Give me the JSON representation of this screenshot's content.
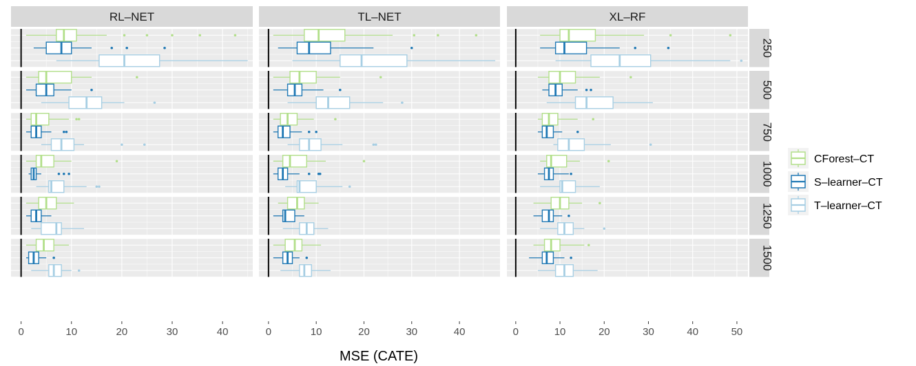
{
  "chart_data": {
    "type": "boxplot",
    "orientation": "horizontal",
    "xlabel": "MSE (CATE)",
    "facet_columns": [
      "RL–NET",
      "TL–NET",
      "XL–RF"
    ],
    "facet_rows": [
      "250",
      "500",
      "750",
      "1000",
      "1250",
      "1500"
    ],
    "xlims": [
      [
        -2,
        46
      ],
      [
        -2,
        48.5
      ],
      [
        -2,
        52.5
      ]
    ],
    "xticks": [
      [
        0,
        10,
        20,
        30,
        40
      ],
      [
        0,
        10,
        20,
        30,
        40
      ],
      [
        0,
        10,
        20,
        30,
        40,
        50
      ]
    ],
    "vline_x": 0,
    "series": [
      {
        "name": "CForest–CT",
        "color": "#b2df8a"
      },
      {
        "name": "S–learner–CT",
        "color": "#1f78b4"
      },
      {
        "name": "T–learner–CT",
        "color": "#a6cee3"
      }
    ],
    "boxes": [
      [
        [
          {
            "wlo": 1,
            "q1": 7,
            "med": 8.5,
            "q3": 11,
            "whi": 17,
            "out": [
              20.5,
              25,
              30,
              35.5,
              42.5
            ]
          },
          {
            "wlo": 2.5,
            "q1": 5,
            "med": 8,
            "q3": 10,
            "whi": 14,
            "out": [
              18,
              21,
              28.5
            ]
          },
          {
            "wlo": 7,
            "q1": 15.5,
            "med": 20.5,
            "q3": 27.5,
            "whi": 45,
            "out": []
          }
        ],
        [
          {
            "wlo": 1,
            "q1": 3.5,
            "med": 5,
            "q3": 10,
            "whi": 14,
            "out": [
              23
            ]
          },
          {
            "wlo": 1,
            "q1": 3,
            "med": 5,
            "q3": 6.5,
            "whi": 10,
            "out": [
              14
            ]
          },
          {
            "wlo": 4,
            "q1": 9.5,
            "med": 13,
            "q3": 16,
            "whi": 20.5,
            "out": [
              26.5
            ]
          }
        ],
        [
          {
            "wlo": 1,
            "q1": 2,
            "med": 3,
            "q3": 5.5,
            "whi": 9.5,
            "out": [
              11,
              11.5
            ]
          },
          {
            "wlo": 1,
            "q1": 2,
            "med": 3,
            "q3": 4,
            "whi": 6,
            "out": [
              8.5,
              9
            ]
          },
          {
            "wlo": 4,
            "q1": 6,
            "med": 8,
            "q3": 10.5,
            "whi": 12.5,
            "out": [
              20,
              24.5
            ]
          }
        ],
        [
          {
            "wlo": 1,
            "q1": 3,
            "med": 4,
            "q3": 6.5,
            "whi": 10,
            "out": [
              19
            ]
          },
          {
            "wlo": 1.5,
            "q1": 2,
            "med": 2.5,
            "q3": 3,
            "whi": 4,
            "out": [
              7.5,
              8.5,
              9.5
            ]
          },
          {
            "wlo": 3,
            "q1": 5.5,
            "med": 6,
            "q3": 8.5,
            "whi": 13,
            "out": [
              15,
              15.5
            ]
          }
        ],
        [
          {
            "wlo": 1,
            "q1": 3.5,
            "med": 5,
            "q3": 7,
            "whi": 10.5,
            "out": []
          },
          {
            "wlo": 1,
            "q1": 2,
            "med": 3,
            "q3": 4,
            "whi": 6,
            "out": []
          },
          {
            "wlo": 2,
            "q1": 4,
            "med": 7,
            "q3": 8,
            "whi": 12.5,
            "out": []
          }
        ],
        [
          {
            "wlo": 1,
            "q1": 3,
            "med": 4.5,
            "q3": 6.5,
            "whi": 9.5,
            "out": []
          },
          {
            "wlo": 1,
            "q1": 1.5,
            "med": 2.5,
            "q3": 3.5,
            "whi": 5,
            "out": [
              6.5
            ]
          },
          {
            "wlo": 2,
            "q1": 5.5,
            "med": 6.5,
            "q3": 8,
            "whi": 10,
            "out": [
              11.5
            ]
          }
        ]
      ],
      [
        [
          {
            "wlo": 1,
            "q1": 7.5,
            "med": 10.5,
            "q3": 16,
            "whi": 26,
            "out": [
              30.5,
              35.5,
              43.5
            ]
          },
          {
            "wlo": 2,
            "q1": 6,
            "med": 8.5,
            "q3": 13,
            "whi": 22,
            "out": [
              30
            ]
          },
          {
            "wlo": 5,
            "q1": 15,
            "med": 19.5,
            "q3": 29,
            "whi": 47.5,
            "out": []
          }
        ],
        [
          {
            "wlo": 1,
            "q1": 4.5,
            "med": 6.5,
            "q3": 10,
            "whi": 15,
            "out": [
              23.5
            ]
          },
          {
            "wlo": 1,
            "q1": 4,
            "med": 5.5,
            "q3": 7,
            "whi": 11.5,
            "out": [
              15
            ]
          },
          {
            "wlo": 4,
            "q1": 10,
            "med": 12.5,
            "q3": 17,
            "whi": 24,
            "out": [
              28
            ]
          }
        ],
        [
          {
            "wlo": 1,
            "q1": 2.5,
            "med": 4,
            "q3": 6,
            "whi": 9.5,
            "out": [
              14
            ]
          },
          {
            "wlo": 1,
            "q1": 2,
            "med": 3,
            "q3": 4.5,
            "whi": 7,
            "out": [
              8.5,
              10
            ]
          },
          {
            "wlo": 4,
            "q1": 6.5,
            "med": 8.5,
            "q3": 11,
            "whi": 15.5,
            "out": [
              22,
              22.5
            ]
          }
        ],
        [
          {
            "wlo": 1,
            "q1": 3,
            "med": 4.5,
            "q3": 8,
            "whi": 12,
            "out": [
              20
            ]
          },
          {
            "wlo": 1,
            "q1": 2,
            "med": 3,
            "q3": 4,
            "whi": 6.5,
            "out": [
              8.5,
              10.5,
              10.8
            ]
          },
          {
            "wlo": 3.5,
            "q1": 6,
            "med": 6.5,
            "q3": 10,
            "whi": 15.5,
            "out": [
              17
            ]
          }
        ],
        [
          {
            "wlo": 2,
            "q1": 4,
            "med": 6,
            "q3": 7.5,
            "whi": 10.5,
            "out": []
          },
          {
            "wlo": 1,
            "q1": 3,
            "med": 3.5,
            "q3": 5.5,
            "whi": 7.5,
            "out": []
          },
          {
            "wlo": 3,
            "q1": 6.5,
            "med": 8,
            "q3": 9.5,
            "whi": 12.5,
            "out": []
          }
        ],
        [
          {
            "wlo": 1,
            "q1": 3.5,
            "med": 5.5,
            "q3": 7,
            "whi": 11,
            "out": []
          },
          {
            "wlo": 1,
            "q1": 3,
            "med": 4,
            "q3": 5,
            "whi": 6.5,
            "out": [
              8
            ]
          },
          {
            "wlo": 2.5,
            "q1": 6.5,
            "med": 7.5,
            "q3": 9,
            "whi": 13,
            "out": []
          }
        ]
      ],
      [
        [
          {
            "wlo": 5.5,
            "q1": 10,
            "med": 12,
            "q3": 18,
            "whi": 29,
            "out": [
              35,
              48.5
            ]
          },
          {
            "wlo": 5.5,
            "q1": 9,
            "med": 11,
            "q3": 16,
            "whi": 23.5,
            "out": [
              27,
              34.5
            ]
          },
          {
            "wlo": 9,
            "q1": 17,
            "med": 23.5,
            "q3": 30.5,
            "whi": 48.5,
            "out": [
              51
            ]
          }
        ],
        [
          {
            "wlo": 5,
            "q1": 7.5,
            "med": 10,
            "q3": 13.5,
            "whi": 19,
            "out": [
              26
            ]
          },
          {
            "wlo": 6,
            "q1": 7.5,
            "med": 9,
            "q3": 10.5,
            "whi": 14,
            "out": [
              16,
              17
            ]
          },
          {
            "wlo": 7,
            "q1": 13.5,
            "med": 16,
            "q3": 22,
            "whi": 31,
            "out": []
          }
        ],
        [
          {
            "wlo": 5,
            "q1": 6,
            "med": 7.5,
            "q3": 9.5,
            "whi": 14,
            "out": [
              17.5
            ]
          },
          {
            "wlo": 5,
            "q1": 6,
            "med": 7,
            "q3": 8.5,
            "whi": 10.5,
            "out": [
              14
            ]
          },
          {
            "wlo": 8.5,
            "q1": 9.5,
            "med": 12,
            "q3": 15.5,
            "whi": 21.5,
            "out": [
              30.5
            ]
          }
        ],
        [
          {
            "wlo": 5.5,
            "q1": 7,
            "med": 8,
            "q3": 11.5,
            "whi": 14.5,
            "out": [
              21
            ]
          },
          {
            "wlo": 5,
            "q1": 6.5,
            "med": 7.5,
            "q3": 8.5,
            "whi": 12,
            "out": [
              12.5
            ]
          },
          {
            "wlo": 5.5,
            "q1": 10,
            "med": 10.5,
            "q3": 13.5,
            "whi": 19,
            "out": []
          }
        ],
        [
          {
            "wlo": 4,
            "q1": 8,
            "med": 10,
            "q3": 12,
            "whi": 15,
            "out": [
              19
            ]
          },
          {
            "wlo": 4,
            "q1": 6,
            "med": 7.5,
            "q3": 8.5,
            "whi": 10.5,
            "out": [
              12
            ]
          },
          {
            "wlo": 5.5,
            "q1": 9.5,
            "med": 11,
            "q3": 13,
            "whi": 15.5,
            "out": [
              20
            ]
          }
        ],
        [
          {
            "wlo": 4,
            "q1": 6.5,
            "med": 8,
            "q3": 10,
            "whi": 15.5,
            "out": [
              16.5
            ]
          },
          {
            "wlo": 3,
            "q1": 6,
            "med": 7,
            "q3": 8.5,
            "whi": 11,
            "out": [
              12.5
            ]
          },
          {
            "wlo": 5,
            "q1": 9,
            "med": 11,
            "q3": 13,
            "whi": 18.5,
            "out": []
          }
        ]
      ]
    ]
  }
}
